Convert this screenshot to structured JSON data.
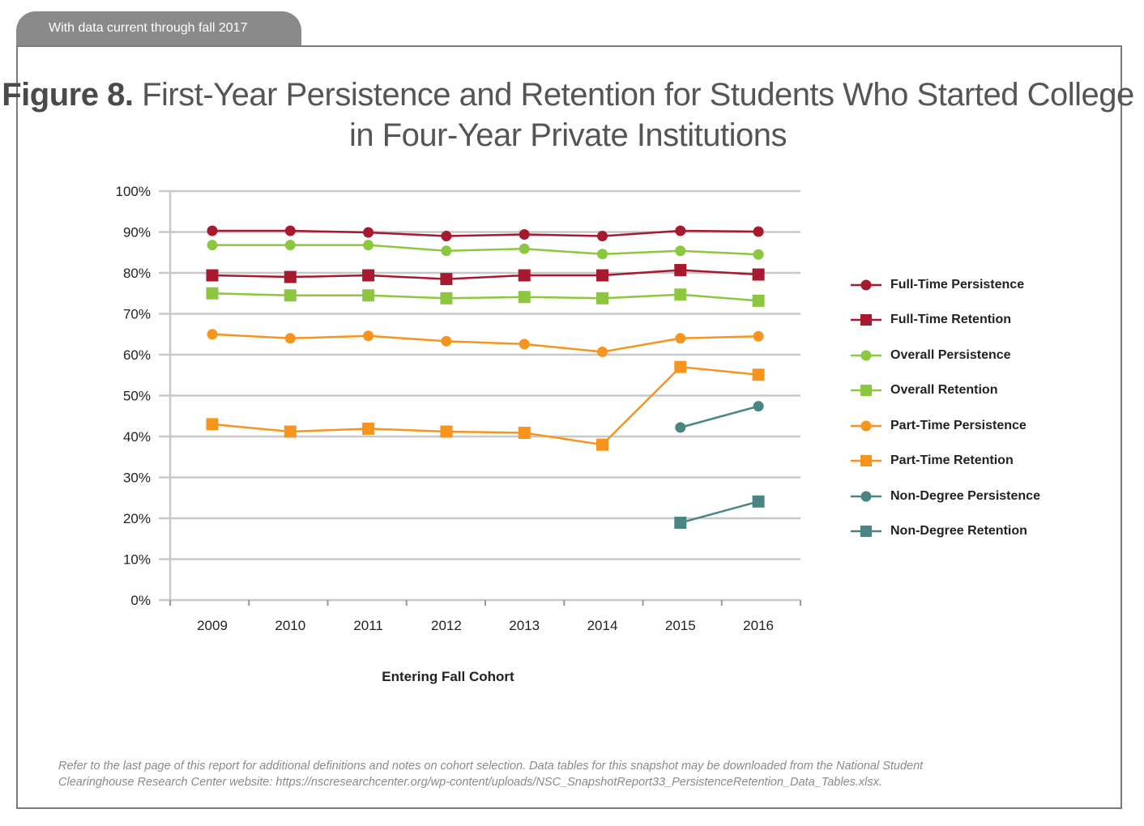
{
  "header": {
    "tab_text": "With data current through fall 2017"
  },
  "figure": {
    "label": "Figure 8.",
    "title_line1": "First-Year Persistence and Retention for Students Who Started College",
    "title_line2": "in Four-Year Private Institutions"
  },
  "footnote": {
    "line1": "Refer to the last page of this report for additional definitions and notes on cohort selection. Data tables for this snapshot may be downloaded from the National Student",
    "line2": "Clearinghouse Research Center website: https://nscresearchcenter.org/wp-content/uploads/NSC_SnapshotReport33_PersistenceRetention_Data_Tables.xlsx."
  },
  "chart_data": {
    "type": "line",
    "title": "",
    "xlabel": "Entering Fall Cohort",
    "ylabel": "",
    "x": [
      "2009",
      "2010",
      "2011",
      "2012",
      "2013",
      "2014",
      "2015",
      "2016"
    ],
    "ylim": [
      0,
      100
    ],
    "y_ticks": [
      0,
      10,
      20,
      30,
      40,
      50,
      60,
      70,
      80,
      90,
      100
    ],
    "y_tick_labels": [
      "0%",
      "10%",
      "20%",
      "30%",
      "40%",
      "50%",
      "60%",
      "70%",
      "80%",
      "90%",
      "100%"
    ],
    "grid": true,
    "legend_position": "right",
    "series": [
      {
        "name": "Full-Time Persistence",
        "marker": "circle",
        "color": "#a6192e",
        "values": [
          90.3,
          90.3,
          89.9,
          89.0,
          89.4,
          89.0,
          90.3,
          90.1
        ]
      },
      {
        "name": "Full-Time Retention",
        "marker": "square",
        "color": "#a6192e",
        "values": [
          79.4,
          79.0,
          79.4,
          78.5,
          79.4,
          79.4,
          80.7,
          79.6
        ]
      },
      {
        "name": "Overall Persistence",
        "marker": "circle",
        "color": "#8dc63f",
        "values": [
          86.8,
          86.8,
          86.8,
          85.4,
          85.9,
          84.6,
          85.4,
          84.5
        ]
      },
      {
        "name": "Overall Retention",
        "marker": "square",
        "color": "#8dc63f",
        "values": [
          75.0,
          74.5,
          74.5,
          73.8,
          74.1,
          73.8,
          74.7,
          73.2
        ]
      },
      {
        "name": "Part-Time Persistence",
        "marker": "circle",
        "color": "#f7941d",
        "values": [
          65.0,
          64.0,
          64.6,
          63.3,
          62.6,
          60.7,
          64.0,
          64.5
        ]
      },
      {
        "name": "Part-Time Retention",
        "marker": "square",
        "color": "#f7941d",
        "values": [
          43.0,
          41.2,
          41.9,
          41.2,
          40.9,
          38.0,
          57.0,
          55.1
        ]
      },
      {
        "name": "Non-Degree Persistence",
        "marker": "circle",
        "color": "#4a8584",
        "values": [
          null,
          null,
          null,
          null,
          null,
          null,
          42.2,
          47.4
        ]
      },
      {
        "name": "Non-Degree Retention",
        "marker": "square",
        "color": "#4a8584",
        "values": [
          null,
          null,
          null,
          null,
          null,
          null,
          18.9,
          24.1
        ]
      }
    ]
  }
}
